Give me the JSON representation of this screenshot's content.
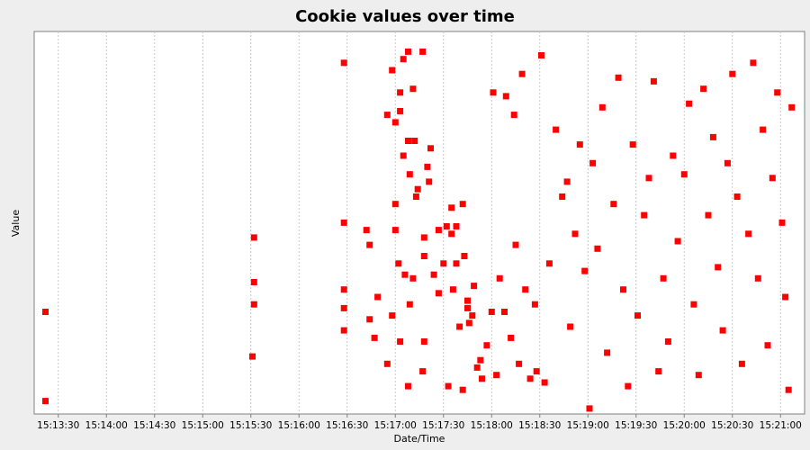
{
  "chart_data": {
    "type": "scatter",
    "title": "Cookie values over time",
    "xlabel": "Date/Time",
    "ylabel": "Value",
    "x_axis_format": "HH:MM:SS",
    "xlim": [
      "15:13:15",
      "15:21:15"
    ],
    "ylim": [
      0,
      1
    ],
    "x_ticks": [
      "15:13:30",
      "15:14:00",
      "15:14:30",
      "15:15:00",
      "15:15:30",
      "15:16:00",
      "15:16:30",
      "15:17:00",
      "15:17:30",
      "15:18:00",
      "15:18:30",
      "15:19:00",
      "15:19:30",
      "15:20:00",
      "15:20:30",
      "15:21:00"
    ],
    "y_tick_labels": false,
    "grid": {
      "vertical": true,
      "horizontal": false
    },
    "legend": "none",
    "series": [
      {
        "color": "#ff0000",
        "marker": "square",
        "points": [
          {
            "x": "15:13:22",
            "y": 0.27
          },
          {
            "x": "15:13:22",
            "y": 0.03
          },
          {
            "x": "15:15:32",
            "y": 0.47
          },
          {
            "x": "15:15:32",
            "y": 0.35
          },
          {
            "x": "15:15:32",
            "y": 0.29
          },
          {
            "x": "15:15:31",
            "y": 0.15
          },
          {
            "x": "15:16:28",
            "y": 0.94
          },
          {
            "x": "15:16:28",
            "y": 0.51
          },
          {
            "x": "15:16:28",
            "y": 0.33
          },
          {
            "x": "15:16:28",
            "y": 0.28
          },
          {
            "x": "15:16:28",
            "y": 0.22
          },
          {
            "x": "15:16:42",
            "y": 0.49
          },
          {
            "x": "15:16:44",
            "y": 0.45
          },
          {
            "x": "15:16:44",
            "y": 0.25
          },
          {
            "x": "15:16:47",
            "y": 0.2
          },
          {
            "x": "15:16:49",
            "y": 0.31
          },
          {
            "x": "15:16:55",
            "y": 0.8
          },
          {
            "x": "15:16:55",
            "y": 0.13
          },
          {
            "x": "15:16:58",
            "y": 0.92
          },
          {
            "x": "15:16:58",
            "y": 0.26
          },
          {
            "x": "15:17:00",
            "y": 0.78
          },
          {
            "x": "15:17:00",
            "y": 0.56
          },
          {
            "x": "15:17:00",
            "y": 0.49
          },
          {
            "x": "15:17:02",
            "y": 0.4
          },
          {
            "x": "15:17:03",
            "y": 0.86
          },
          {
            "x": "15:17:03",
            "y": 0.81
          },
          {
            "x": "15:17:03",
            "y": 0.19
          },
          {
            "x": "15:17:05",
            "y": 0.95
          },
          {
            "x": "15:17:05",
            "y": 0.69
          },
          {
            "x": "15:17:06",
            "y": 0.37
          },
          {
            "x": "15:17:08",
            "y": 0.97
          },
          {
            "x": "15:17:08",
            "y": 0.73
          },
          {
            "x": "15:17:08",
            "y": 0.07
          },
          {
            "x": "15:17:09",
            "y": 0.64
          },
          {
            "x": "15:17:09",
            "y": 0.29
          },
          {
            "x": "15:17:11",
            "y": 0.87
          },
          {
            "x": "15:17:11",
            "y": 0.36
          },
          {
            "x": "15:17:12",
            "y": 0.73
          },
          {
            "x": "15:17:13",
            "y": 0.58
          },
          {
            "x": "15:17:14",
            "y": 0.6
          },
          {
            "x": "15:17:17",
            "y": 0.97
          },
          {
            "x": "15:17:17",
            "y": 0.11
          },
          {
            "x": "15:17:18",
            "y": 0.47
          },
          {
            "x": "15:17:18",
            "y": 0.42
          },
          {
            "x": "15:17:18",
            "y": 0.19
          },
          {
            "x": "15:17:20",
            "y": 0.66
          },
          {
            "x": "15:17:21",
            "y": 0.62
          },
          {
            "x": "15:17:22",
            "y": 0.71
          },
          {
            "x": "15:17:24",
            "y": 0.37
          },
          {
            "x": "15:17:27",
            "y": 0.49
          },
          {
            "x": "15:17:27",
            "y": 0.32
          },
          {
            "x": "15:17:30",
            "y": 0.4
          },
          {
            "x": "15:17:32",
            "y": 0.5
          },
          {
            "x": "15:17:33",
            "y": 0.07
          },
          {
            "x": "15:17:35",
            "y": 0.55
          },
          {
            "x": "15:17:35",
            "y": 0.48
          },
          {
            "x": "15:17:36",
            "y": 0.33
          },
          {
            "x": "15:17:38",
            "y": 0.5
          },
          {
            "x": "15:17:38",
            "y": 0.4
          },
          {
            "x": "15:17:40",
            "y": 0.23
          },
          {
            "x": "15:17:42",
            "y": 0.56
          },
          {
            "x": "15:17:42",
            "y": 0.06
          },
          {
            "x": "15:17:43",
            "y": 0.42
          },
          {
            "x": "15:17:45",
            "y": 0.28
          },
          {
            "x": "15:17:45",
            "y": 0.3
          },
          {
            "x": "15:17:46",
            "y": 0.24
          },
          {
            "x": "15:17:48",
            "y": 0.26
          },
          {
            "x": "15:17:49",
            "y": 0.34
          },
          {
            "x": "15:17:51",
            "y": 0.12
          },
          {
            "x": "15:17:53",
            "y": 0.14
          },
          {
            "x": "15:17:54",
            "y": 0.09
          },
          {
            "x": "15:17:57",
            "y": 0.18
          },
          {
            "x": "15:18:00",
            "y": 0.27
          },
          {
            "x": "15:18:01",
            "y": 0.86
          },
          {
            "x": "15:18:03",
            "y": 0.1
          },
          {
            "x": "15:18:05",
            "y": 0.36
          },
          {
            "x": "15:18:08",
            "y": 0.27
          },
          {
            "x": "15:18:09",
            "y": 0.85
          },
          {
            "x": "15:18:12",
            "y": 0.2
          },
          {
            "x": "15:18:14",
            "y": 0.8
          },
          {
            "x": "15:18:15",
            "y": 0.45
          },
          {
            "x": "15:18:17",
            "y": 0.13
          },
          {
            "x": "15:18:19",
            "y": 0.91
          },
          {
            "x": "15:18:21",
            "y": 0.33
          },
          {
            "x": "15:18:24",
            "y": 0.09
          },
          {
            "x": "15:18:27",
            "y": 0.29
          },
          {
            "x": "15:18:28",
            "y": 0.11
          },
          {
            "x": "15:18:31",
            "y": 0.96
          },
          {
            "x": "15:18:33",
            "y": 0.08
          },
          {
            "x": "15:18:36",
            "y": 0.4
          },
          {
            "x": "15:18:40",
            "y": 0.76
          },
          {
            "x": "15:18:44",
            "y": 0.58
          },
          {
            "x": "15:18:47",
            "y": 0.62
          },
          {
            "x": "15:18:49",
            "y": 0.23
          },
          {
            "x": "15:18:52",
            "y": 0.48
          },
          {
            "x": "15:18:55",
            "y": 0.72
          },
          {
            "x": "15:18:58",
            "y": 0.38
          },
          {
            "x": "15:19:01",
            "y": 0.01
          },
          {
            "x": "15:19:03",
            "y": 0.67
          },
          {
            "x": "15:19:06",
            "y": 0.44
          },
          {
            "x": "15:19:09",
            "y": 0.82
          },
          {
            "x": "15:19:12",
            "y": 0.16
          },
          {
            "x": "15:19:16",
            "y": 0.56
          },
          {
            "x": "15:19:19",
            "y": 0.9
          },
          {
            "x": "15:19:22",
            "y": 0.33
          },
          {
            "x": "15:19:25",
            "y": 0.07
          },
          {
            "x": "15:19:28",
            "y": 0.72
          },
          {
            "x": "15:19:31",
            "y": 0.26
          },
          {
            "x": "15:19:35",
            "y": 0.53
          },
          {
            "x": "15:19:38",
            "y": 0.63
          },
          {
            "x": "15:19:41",
            "y": 0.89
          },
          {
            "x": "15:19:44",
            "y": 0.11
          },
          {
            "x": "15:19:47",
            "y": 0.36
          },
          {
            "x": "15:19:50",
            "y": 0.19
          },
          {
            "x": "15:19:53",
            "y": 0.69
          },
          {
            "x": "15:19:56",
            "y": 0.46
          },
          {
            "x": "15:20:00",
            "y": 0.64
          },
          {
            "x": "15:20:03",
            "y": 0.83
          },
          {
            "x": "15:20:06",
            "y": 0.29
          },
          {
            "x": "15:20:09",
            "y": 0.1
          },
          {
            "x": "15:20:12",
            "y": 0.87
          },
          {
            "x": "15:20:15",
            "y": 0.53
          },
          {
            "x": "15:20:18",
            "y": 0.74
          },
          {
            "x": "15:20:21",
            "y": 0.39
          },
          {
            "x": "15:20:24",
            "y": 0.22
          },
          {
            "x": "15:20:27",
            "y": 0.67
          },
          {
            "x": "15:20:30",
            "y": 0.91
          },
          {
            "x": "15:20:33",
            "y": 0.58
          },
          {
            "x": "15:20:36",
            "y": 0.13
          },
          {
            "x": "15:20:40",
            "y": 0.48
          },
          {
            "x": "15:20:43",
            "y": 0.94
          },
          {
            "x": "15:20:46",
            "y": 0.36
          },
          {
            "x": "15:20:49",
            "y": 0.76
          },
          {
            "x": "15:20:52",
            "y": 0.18
          },
          {
            "x": "15:20:55",
            "y": 0.63
          },
          {
            "x": "15:20:58",
            "y": 0.86
          },
          {
            "x": "15:21:01",
            "y": 0.51
          },
          {
            "x": "15:21:03",
            "y": 0.31
          },
          {
            "x": "15:21:05",
            "y": 0.06
          },
          {
            "x": "15:21:07",
            "y": 0.82
          }
        ]
      }
    ]
  }
}
